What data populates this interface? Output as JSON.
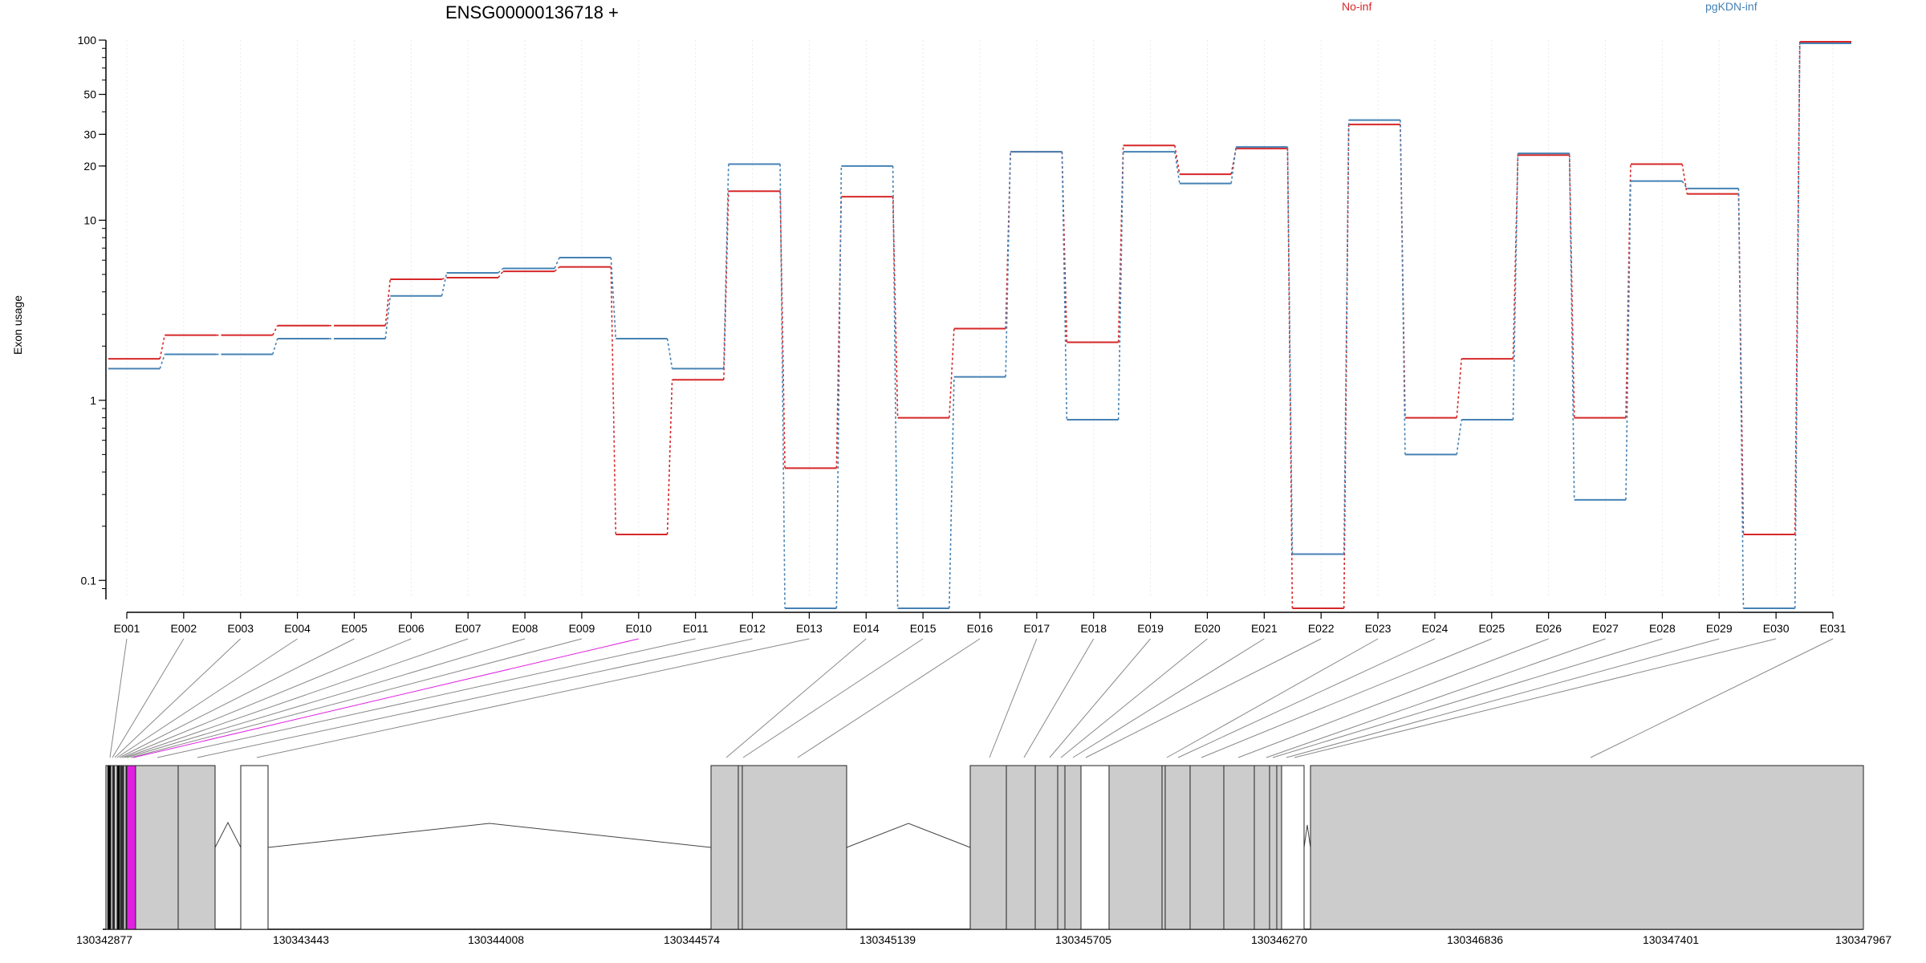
{
  "chart_data": {
    "type": "line",
    "title": "ENSG00000136718 +",
    "ylabel": "Exon usage",
    "y_scale": "log",
    "ylim": [
      0.08,
      100
    ],
    "y_ticks": [
      "100",
      "50",
      "30",
      "20",
      "10",
      "1",
      "0.1"
    ],
    "y_tick_values": [
      100,
      50,
      30,
      20,
      10,
      1,
      0.1
    ],
    "categories": [
      "E001",
      "E002",
      "E003",
      "E004",
      "E005",
      "E006",
      "E007",
      "E008",
      "E009",
      "E010",
      "E011",
      "E012",
      "E013",
      "E014",
      "E015",
      "E016",
      "E017",
      "E018",
      "E019",
      "E020",
      "E021",
      "E022",
      "E023",
      "E024",
      "E025",
      "E026",
      "E027",
      "E028",
      "E029",
      "E030",
      "E031"
    ],
    "series": [
      {
        "name": "No-inf",
        "color": "#d62728",
        "values": [
          1.7,
          2.3,
          2.3,
          2.6,
          2.6,
          4.7,
          4.8,
          5.2,
          5.5,
          0.18,
          1.3,
          14.5,
          0.42,
          13.5,
          0.8,
          2.5,
          24,
          2.1,
          26,
          18,
          25,
          0.07,
          34,
          0.8,
          1.7,
          23,
          0.8,
          20.5,
          14,
          0.18,
          98
        ]
      },
      {
        "name": "pgKDN-inf",
        "color": "#4682b4",
        "values": [
          1.5,
          1.8,
          1.8,
          2.2,
          2.2,
          3.8,
          5.1,
          5.4,
          6.2,
          2.2,
          1.5,
          20.5,
          0.07,
          20,
          0.07,
          1.35,
          24,
          0.78,
          24,
          16,
          25.5,
          0.14,
          36,
          0.5,
          0.78,
          23.5,
          0.28,
          16.5,
          15,
          0.07,
          96
        ]
      }
    ],
    "legend": [
      "No-inf",
      "pgKDN-inf"
    ],
    "legend_placement": "top",
    "grid": true,
    "highlight": {
      "exon": "E010",
      "color": "#e020e0"
    },
    "gene_model": {
      "coordinate_labels": [
        "130342877",
        "130343443",
        "130344008",
        "130344574",
        "130345139",
        "130345705",
        "130346270",
        "130346836",
        "130347401",
        "130347967"
      ]
    }
  }
}
